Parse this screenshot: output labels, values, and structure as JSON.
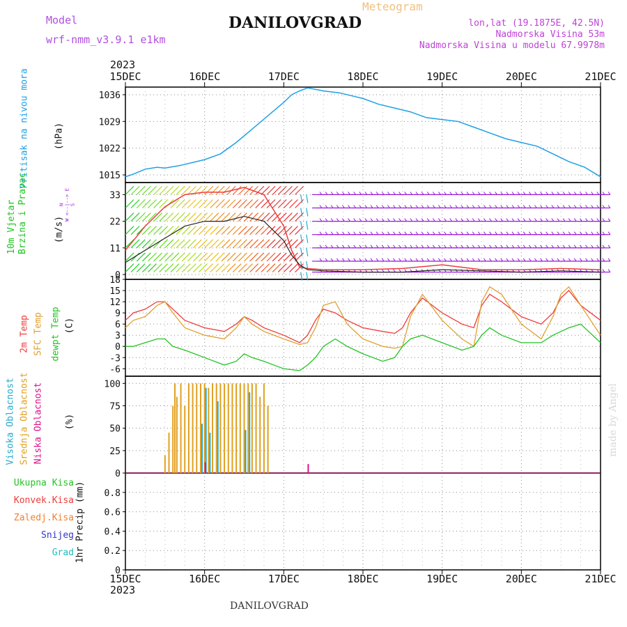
{
  "header": {
    "model_label": "Model",
    "model_value": "wrf-nmm_v3.9.1  e1km",
    "station": "DANILOVGRAD",
    "meteogram": "Meteogram",
    "lonlat": "lon,lat (19.1875E, 42.5N)",
    "elevation": "Nadmorska Visina 53m",
    "model_elevation": "Nadmorska Visina u modelu 67.9978m",
    "footer_station": "DANILOVGRAD",
    "credit": "made by Angel"
  },
  "colors": {
    "pressure": "#1ea0e6",
    "t2m": "#ee3b3b",
    "sfc": "#e0a030",
    "dew": "#22c322",
    "cloud_high": "#22aacc",
    "cloud_mid": "#e0a020",
    "cloud_low": "#dd1188",
    "wind_purple": "#9a1ad8",
    "label_model": "#b050e0",
    "label_meteogram": "#f0c080",
    "label_info": "#c040d8"
  },
  "chart_data": [
    {
      "type": "line",
      "panel": "pressure",
      "ylabel_name": "Pritisak na nivou mora",
      "ylabel_unit": "(hPa)",
      "ylim": [
        1013,
        1038
      ],
      "yticks": [
        1015,
        1022,
        1029,
        1036
      ],
      "x_start_year": "2023",
      "x_ticks": [
        "15DEC",
        "16DEC",
        "17DEC",
        "18DEC",
        "19DEC",
        "20DEC",
        "21DEC"
      ],
      "x": [
        0,
        0.1,
        0.25,
        0.4,
        0.5,
        0.7,
        0.9,
        1.0,
        1.2,
        1.4,
        1.6,
        1.8,
        2.0,
        2.1,
        2.2,
        2.3,
        2.35,
        2.5,
        2.7,
        3.0,
        3.2,
        3.4,
        3.6,
        3.8,
        4.0,
        4.2,
        4.4,
        4.6,
        4.8,
        5.0,
        5.2,
        5.4,
        5.6,
        5.8,
        6.0
      ],
      "series": [
        {
          "values": [
            1014.5,
            1015.2,
            1016.5,
            1017.0,
            1016.8,
            1017.5,
            1018.5,
            1019.0,
            1020.5,
            1023.5,
            1027.0,
            1030.5,
            1034.0,
            1036.0,
            1037.0,
            1037.8,
            1037.6,
            1037.0,
            1036.5,
            1035.0,
            1033.5,
            1032.5,
            1031.5,
            1030.0,
            1029.5,
            1029.0,
            1027.5,
            1026.0,
            1024.5,
            1023.5,
            1022.5,
            1020.5,
            1018.5,
            1017.0,
            1014.5
          ]
        }
      ]
    },
    {
      "type": "line",
      "panel": "wind",
      "ylabel_name": "10m Vjetar\nBrzina i Pravac",
      "ylabel_unit": "(m/s)",
      "compass": "N\nW <--|--> E\nS",
      "ylim": [
        -2,
        38
      ],
      "yticks": [
        0,
        11,
        22,
        33
      ],
      "x": [
        0,
        0.25,
        0.5,
        0.75,
        1.0,
        1.25,
        1.5,
        1.75,
        2.0,
        2.1,
        2.2,
        2.3,
        2.5,
        3.0,
        3.5,
        4.0,
        4.5,
        5.0,
        5.5,
        6.0
      ],
      "series": [
        {
          "name": "speed",
          "values": [
            5,
            10,
            15,
            20,
            22,
            22,
            24,
            22,
            14,
            8,
            4,
            2,
            1.5,
            1,
            1,
            2,
            1.5,
            1,
            1.5,
            1
          ]
        },
        {
          "name": "gust",
          "values": [
            10,
            20,
            28,
            33,
            34,
            34,
            36,
            33,
            20,
            10,
            3,
            2.5,
            2,
            2,
            2.5,
            4,
            2,
            2,
            2.5,
            2
          ]
        }
      ]
    },
    {
      "type": "line",
      "panel": "temperature",
      "ylabel_names": [
        "2m Temp",
        "SFC Temp",
        "dewpt Temp"
      ],
      "ylabel_unit": "(C)",
      "ylim": [
        -8,
        18
      ],
      "yticks": [
        -6,
        -3,
        0,
        3,
        6,
        9,
        12,
        15,
        18
      ],
      "x": [
        0,
        0.1,
        0.25,
        0.4,
        0.5,
        0.6,
        0.75,
        1.0,
        1.25,
        1.4,
        1.5,
        1.6,
        1.75,
        2.0,
        2.2,
        2.3,
        2.4,
        2.5,
        2.65,
        2.8,
        3.0,
        3.25,
        3.4,
        3.5,
        3.6,
        3.75,
        4.0,
        4.25,
        4.4,
        4.5,
        4.6,
        4.75,
        5.0,
        5.25,
        5.4,
        5.5,
        5.6,
        5.75,
        6.0
      ],
      "series": [
        {
          "name": "2m",
          "values": [
            7,
            9,
            10,
            12,
            12,
            10,
            7,
            5,
            4,
            6,
            8,
            7,
            5,
            3,
            1,
            3,
            7,
            10,
            9,
            7,
            5,
            4,
            3.5,
            5,
            9,
            13,
            9,
            6,
            5,
            11,
            14,
            12,
            8,
            6,
            9,
            13,
            15,
            11,
            7
          ]
        },
        {
          "name": "sfc",
          "values": [
            5,
            7,
            8,
            11,
            12,
            9,
            5,
            3,
            2,
            5,
            8,
            6,
            4,
            2,
            0.5,
            1,
            5,
            11,
            12,
            6,
            2,
            0,
            -0.5,
            0,
            8,
            14,
            7,
            2,
            0,
            12,
            16,
            14,
            6,
            2,
            8,
            14,
            16,
            11,
            3
          ]
        },
        {
          "name": "dewpt",
          "values": [
            0,
            0,
            1,
            2,
            2,
            0,
            -1,
            -3,
            -5,
            -4,
            -2,
            -3,
            -4,
            -6,
            -6.5,
            -5,
            -3,
            0,
            2,
            0,
            -2,
            -4,
            -3,
            0,
            2,
            3,
            1,
            -1,
            0,
            3,
            5,
            3,
            1,
            1,
            3,
            4,
            5,
            6,
            1
          ]
        }
      ]
    },
    {
      "type": "bar",
      "panel": "clouds",
      "ylabel_names": [
        "Visoka Oblacnost",
        "Srednja Oblacnost",
        "Niska Oblacnost"
      ],
      "ylabel_unit": "(%)",
      "ylim": [
        0,
        108
      ],
      "yticks": [
        0,
        25,
        50,
        75,
        100
      ],
      "x": [
        0.5,
        0.55,
        0.6,
        0.625,
        0.65,
        0.7,
        0.75,
        0.8,
        0.85,
        0.9,
        0.95,
        1.0,
        1.05,
        1.1,
        1.15,
        1.2,
        1.25,
        1.3,
        1.35,
        1.4,
        1.45,
        1.5,
        1.55,
        1.6,
        1.65,
        1.7,
        1.75,
        1.8,
        2.3
      ],
      "series": [
        {
          "name": "mid",
          "values": [
            20,
            45,
            75,
            100,
            85,
            100,
            75,
            100,
            100,
            100,
            100,
            100,
            95,
            100,
            100,
            100,
            100,
            100,
            100,
            100,
            100,
            100,
            100,
            100,
            100,
            85,
            100,
            75,
            0
          ]
        },
        {
          "name": "high",
          "values": [
            0,
            0,
            0,
            0,
            0,
            0,
            0,
            0,
            0,
            0,
            55,
            95,
            45,
            0,
            80,
            0,
            0,
            0,
            0,
            0,
            0,
            48,
            90,
            0,
            0,
            0,
            0,
            0,
            0
          ]
        },
        {
          "name": "low",
          "values": [
            0,
            0,
            0,
            0,
            0,
            0,
            0,
            0,
            0,
            0,
            0,
            12,
            0,
            0,
            0,
            0,
            0,
            0,
            0,
            0,
            0,
            0,
            0,
            0,
            0,
            0,
            0,
            0,
            10
          ]
        }
      ]
    },
    {
      "type": "line",
      "panel": "precip",
      "ylabel_names": [
        "Ukupna Kisa",
        "Konvek.Kisa",
        "Zaledj.Kisa",
        "Snijeg",
        "Grad"
      ],
      "ylabel_unit": "1hr Precip (mm)",
      "ylim": [
        0,
        1.0
      ],
      "yticks": [
        0,
        0.2,
        0.4,
        0.6,
        0.8
      ],
      "x_end_year": "2023",
      "x_ticks": [
        "15DEC",
        "16DEC",
        "17DEC",
        "18DEC",
        "19DEC",
        "20DEC",
        "21DEC"
      ],
      "series": []
    }
  ]
}
